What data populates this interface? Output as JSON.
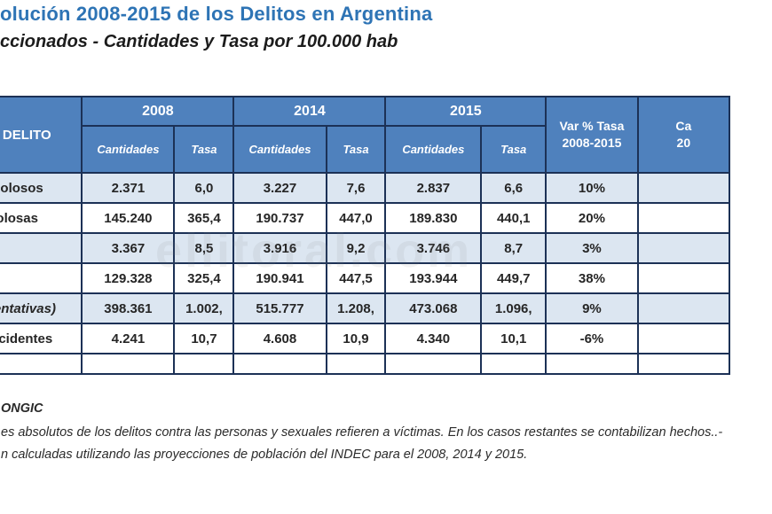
{
  "title": "olución 2008-2015 de los Delitos en Argentina",
  "subtitle": "ccionados - Cantidades y Tasa por 100.000 hab",
  "watermark": "ellitoral.com",
  "table": {
    "label_header": "E DELITO",
    "year_groups": [
      "2008",
      "2014",
      "2015"
    ],
    "sub_headers": [
      "Cantidades",
      "Tasa"
    ],
    "var_header": [
      "Var % Tasa",
      "2008-2015"
    ],
    "last_col_header": [
      "Ca",
      "20"
    ],
    "rows": [
      {
        "label": "Dolosos",
        "italic": false,
        "cells": [
          "2.371",
          "6,0",
          "3.227",
          "7,6",
          "2.837",
          "6,6",
          "10%"
        ]
      },
      {
        "label": "olosas",
        "italic": false,
        "cells": [
          "145.240",
          "365,4",
          "190.737",
          "447,0",
          "189.830",
          "440,1",
          "20%"
        ]
      },
      {
        "label": "",
        "italic": false,
        "cells": [
          "3.367",
          "8,5",
          "3.916",
          "9,2",
          "3.746",
          "8,7",
          "3%"
        ]
      },
      {
        "label": "",
        "italic": false,
        "cells": [
          "129.328",
          "325,4",
          "190.941",
          "447,5",
          "193.944",
          "449,7",
          "38%"
        ]
      },
      {
        "label": "e tentativas)",
        "italic": true,
        "cells": [
          "398.361",
          "1.002,",
          "515.777",
          "1.208,",
          "473.068",
          "1.096,",
          "9%"
        ]
      },
      {
        "label": "Accidentes",
        "italic": false,
        "cells": [
          "4.241",
          "10,7",
          "4.608",
          "10,9",
          "4.340",
          "10,1",
          "-6%"
        ]
      }
    ]
  },
  "footnotes": {
    "source": "ONGIC",
    "note1": "es absolutos de los delitos contra las personas y sexuales refieren a víctimas. En los casos restantes se contabilizan hechos..-",
    "note2": "n calculadas utilizando las proyecciones de población del INDEC para el 2008, 2014 y 2015."
  },
  "colors": {
    "header_blue": "#4f81bd",
    "row_alt_blue": "#dce6f1",
    "title_blue": "#2e74b5",
    "border_navy": "#1c3156"
  }
}
